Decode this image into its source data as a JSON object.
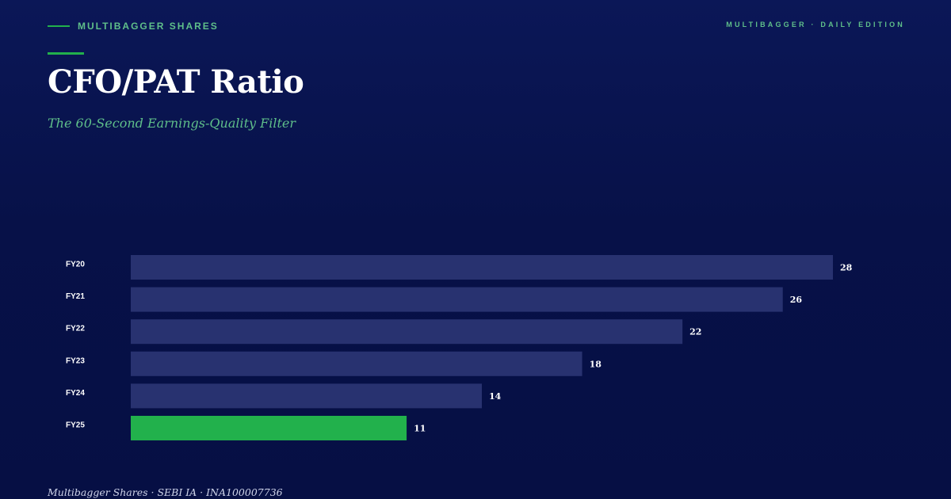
{
  "header": {
    "brand": "MULTIBAGGER SHARES",
    "edition": "MULTIBAGGER · DAILY EDITION",
    "title": "CFO/PAT Ratio",
    "subtitle": "The 60-Second Earnings-Quality Filter"
  },
  "footer": {
    "text": "Multibagger Shares · SEBI IA · INA100007736"
  },
  "colors": {
    "accent": "#22b14c",
    "accent_text": "#5fbf8a",
    "bar_default": "#283270",
    "bar_highlight": "#22b14c",
    "background": "#071148"
  },
  "chart_data": {
    "type": "bar",
    "orientation": "horizontal",
    "title": "CFO/PAT Ratio",
    "subtitle": "The 60-Second Earnings-Quality Filter",
    "categories": [
      "FY20",
      "FY21",
      "FY22",
      "FY23",
      "FY24",
      "FY25"
    ],
    "values": [
      28,
      26,
      22,
      18,
      14,
      11
    ],
    "highlight": "FY25",
    "xlim": [
      0,
      28
    ],
    "grid": false,
    "legend": "none",
    "xlabel": "",
    "ylabel": ""
  }
}
